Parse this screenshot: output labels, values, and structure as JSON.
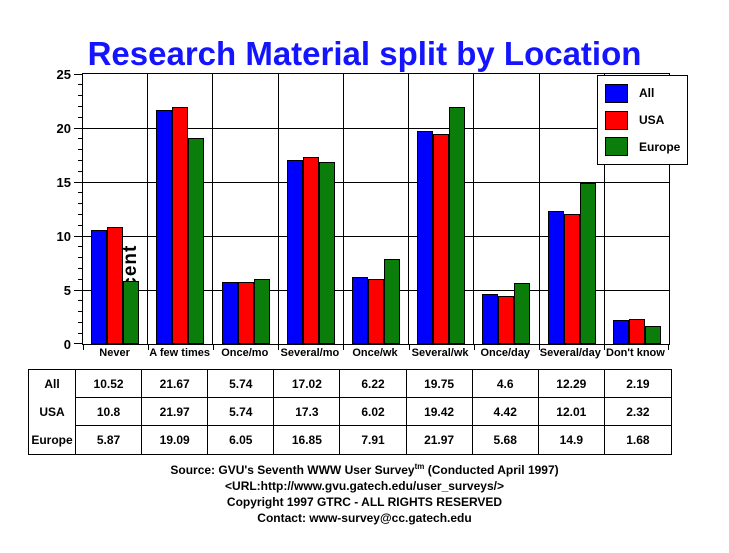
{
  "page": {
    "title": "Research Material split by Location",
    "title_color": "#1414ff"
  },
  "chart_data": {
    "type": "bar",
    "title": "Research Material split by Location",
    "xlabel": "",
    "ylabel": "Percent",
    "ylim": [
      0,
      25
    ],
    "y_major_ticks": [
      0,
      5,
      10,
      15,
      20,
      25
    ],
    "y_minor_step": 1,
    "grid": true,
    "legend_position": "top-right",
    "categories": [
      "Never",
      "A few times",
      "Once/mo",
      "Several/mo",
      "Once/wk",
      "Several/wk",
      "Once/day",
      "Several/day",
      "Don't know"
    ],
    "series": [
      {
        "name": "All",
        "color": "#0000ff",
        "values": [
          10.52,
          21.67,
          5.74,
          17.02,
          6.22,
          19.75,
          4.6,
          12.29,
          2.19
        ]
      },
      {
        "name": "USA",
        "color": "#ff0000",
        "values": [
          10.8,
          21.97,
          5.74,
          17.3,
          6.02,
          19.42,
          4.42,
          12.01,
          2.32
        ]
      },
      {
        "name": "Europe",
        "color": "#0b7d0b",
        "values": [
          5.87,
          19.09,
          6.05,
          16.85,
          7.91,
          21.97,
          5.68,
          14.9,
          1.68
        ]
      }
    ]
  },
  "table": {
    "row_headers": [
      "All",
      "USA",
      "Europe"
    ],
    "rows": [
      [
        "10.52",
        "21.67",
        "5.74",
        "17.02",
        "6.22",
        "19.75",
        "4.6",
        "12.29",
        "2.19"
      ],
      [
        "10.8",
        "21.97",
        "5.74",
        "17.3",
        "6.02",
        "19.42",
        "4.42",
        "12.01",
        "2.32"
      ],
      [
        "5.87",
        "19.09",
        "6.05",
        "16.85",
        "7.91",
        "21.97",
        "5.68",
        "14.9",
        "1.68"
      ]
    ]
  },
  "footer": {
    "source_prefix": "Source: GVU's Seventh WWW User Survey",
    "source_sup": "tm",
    "source_suffix": " (Conducted April 1997)",
    "url_line": "<URL:http://www.gvu.gatech.edu/user_surveys/>",
    "copyright_line": "Copyright 1997 GTRC - ALL RIGHTS RESERVED",
    "contact_line": "Contact: www-survey@cc.gatech.edu"
  }
}
